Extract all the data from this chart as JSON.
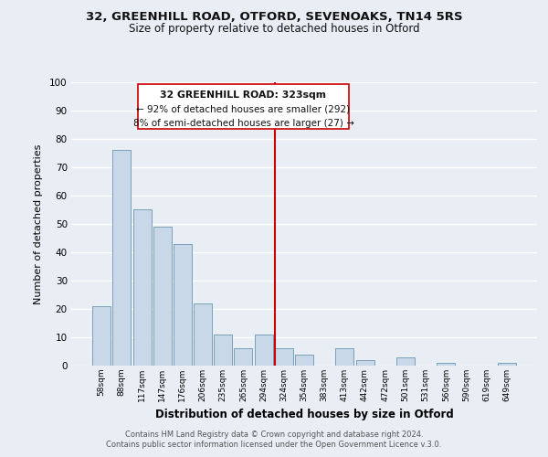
{
  "title1": "32, GREENHILL ROAD, OTFORD, SEVENOAKS, TN14 5RS",
  "title2": "Size of property relative to detached houses in Otford",
  "xlabel": "Distribution of detached houses by size in Otford",
  "ylabel": "Number of detached properties",
  "bar_labels": [
    "58sqm",
    "88sqm",
    "117sqm",
    "147sqm",
    "176sqm",
    "206sqm",
    "235sqm",
    "265sqm",
    "294sqm",
    "324sqm",
    "354sqm",
    "383sqm",
    "413sqm",
    "442sqm",
    "472sqm",
    "501sqm",
    "531sqm",
    "560sqm",
    "590sqm",
    "619sqm",
    "649sqm"
  ],
  "bar_heights": [
    21,
    76,
    55,
    49,
    43,
    22,
    11,
    6,
    11,
    6,
    4,
    0,
    6,
    2,
    0,
    3,
    0,
    1,
    0,
    0,
    1
  ],
  "bar_color": "#c8d8e8",
  "bar_edgecolor": "#7aa0b8",
  "vline_index": 9,
  "vline_color": "#cc0000",
  "ylim": [
    0,
    100
  ],
  "yticks": [
    0,
    10,
    20,
    30,
    40,
    50,
    60,
    70,
    80,
    90,
    100
  ],
  "annotation_title": "32 GREENHILL ROAD: 323sqm",
  "annotation_line1": "← 92% of detached houses are smaller (292)",
  "annotation_line2": "8% of semi-detached houses are larger (27) →",
  "footer1": "Contains HM Land Registry data © Crown copyright and database right 2024.",
  "footer2": "Contains public sector information licensed under the Open Government Licence v.3.0.",
  "background_color": "#e8eef4",
  "grid_color": "#ffffff"
}
